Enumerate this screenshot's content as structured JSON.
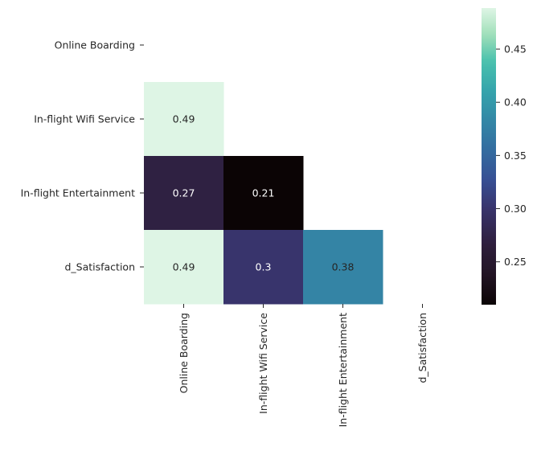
{
  "chart_data": {
    "type": "heatmap",
    "title": "",
    "xlabel": "",
    "ylabel": "",
    "x_categories": [
      "Online Boarding",
      "In-flight Wifi Service",
      "In-flight Entertainment",
      "d_Satisfaction"
    ],
    "y_categories": [
      "Online Boarding",
      "In-flight Wifi Service",
      "In-flight Entertainment",
      "d_Satisfaction"
    ],
    "mask": "upper-triangle-including-diagonal",
    "cells": [
      {
        "row": 1,
        "col": 0,
        "value": 0.49,
        "label": "0.49"
      },
      {
        "row": 2,
        "col": 0,
        "value": 0.27,
        "label": "0.27"
      },
      {
        "row": 2,
        "col": 1,
        "value": 0.21,
        "label": "0.21"
      },
      {
        "row": 3,
        "col": 0,
        "value": 0.49,
        "label": "0.49"
      },
      {
        "row": 3,
        "col": 1,
        "value": 0.3,
        "label": "0.3"
      },
      {
        "row": 3,
        "col": 2,
        "value": 0.38,
        "label": "0.38"
      }
    ],
    "colormap": "mako",
    "colorbar": {
      "vmin": 0.2097,
      "vmax": 0.4886,
      "ticks": [
        0.25,
        0.3,
        0.35,
        0.4,
        0.45
      ],
      "tick_labels": [
        "0.25",
        "0.30",
        "0.35",
        "0.40",
        "0.45"
      ]
    },
    "annotation_colors": {
      "dark_bg_text": "#ffffff",
      "light_bg_text": "#262626"
    }
  }
}
